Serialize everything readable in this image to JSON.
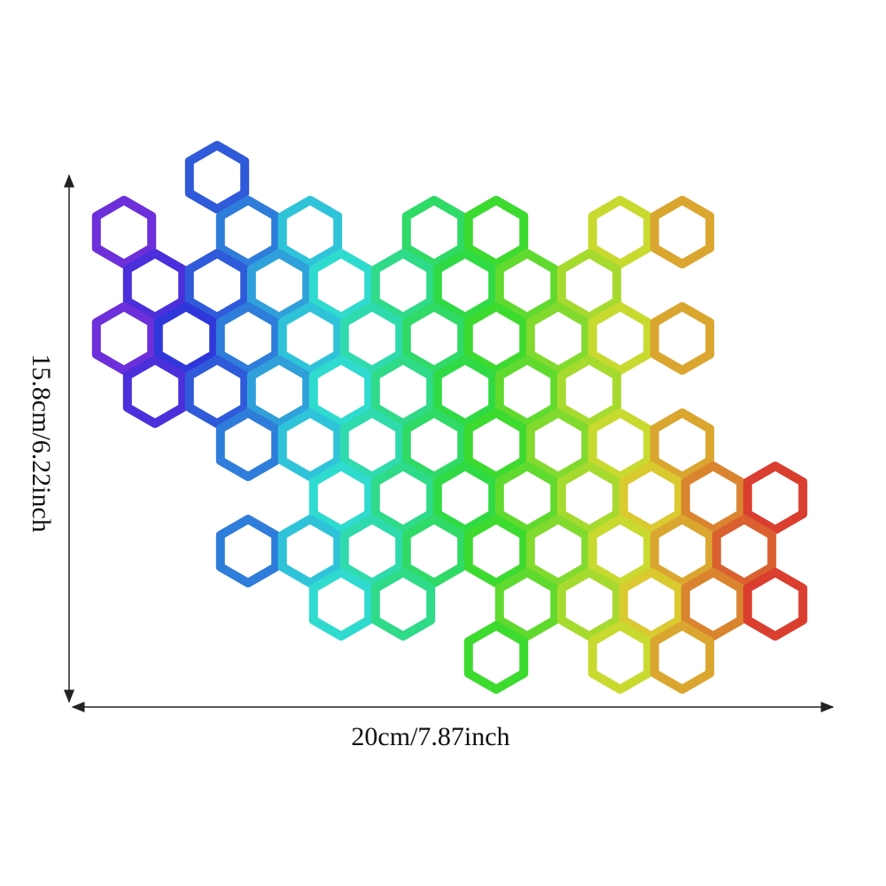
{
  "dimensions": {
    "height_label": "15.8cm/6.22inch",
    "width_label": "20cm/7.87inch"
  }
}
